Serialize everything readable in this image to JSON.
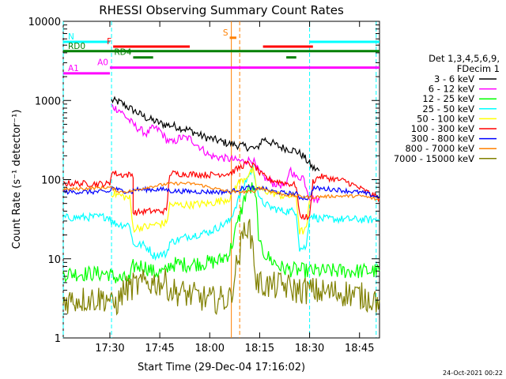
{
  "chart_data": {
    "type": "line",
    "title": "RHESSI Observing Summary Count Rates",
    "xlabel": "Start Time (29-Dec-04 17:16:02)",
    "ylabel": "Count Rate (s⁻¹ detector⁻¹)",
    "timestamp": "24-Oct-2021 00:22",
    "x_unit": "minutes after 17:16:02",
    "xlim": [
      0,
      95
    ],
    "ylim": [
      1,
      10000
    ],
    "yscale": "log",
    "x_ticks": [
      {
        "label": "17:30",
        "t": 14
      },
      {
        "label": "17:45",
        "t": 29
      },
      {
        "label": "18:00",
        "t": 44
      },
      {
        "label": "18:15",
        "t": 59
      },
      {
        "label": "18:30",
        "t": 74
      },
      {
        "label": "18:45",
        "t": 89
      }
    ],
    "y_ticks": [
      {
        "label": "1",
        "v": 1
      },
      {
        "label": "10",
        "v": 10
      },
      {
        "label": "100",
        "v": 100
      },
      {
        "label": "1000",
        "v": 1000
      },
      {
        "label": "10000",
        "v": 10000
      }
    ],
    "legend": {
      "header": [
        "Det 1,3,4,5,6,9,",
        "FDecim 1"
      ],
      "placement": "right"
    },
    "series": [
      {
        "name": "3 - 6 keV",
        "color": "#000000",
        "noise": 0.05,
        "points": [
          [
            14.5,
            1000
          ],
          [
            17,
            950
          ],
          [
            20,
            800
          ],
          [
            25,
            600
          ],
          [
            30,
            500
          ],
          [
            33,
            480
          ],
          [
            38,
            420
          ],
          [
            42,
            350
          ],
          [
            49,
            290
          ],
          [
            57,
            250
          ],
          [
            58,
            240
          ],
          [
            60,
            330
          ],
          [
            65,
            260
          ],
          [
            70,
            230
          ],
          [
            72,
            200
          ],
          [
            75,
            140
          ],
          [
            77,
            130
          ]
        ]
      },
      {
        "name": "6 - 12 keV",
        "color": "#ff00ff",
        "noise": 0.05,
        "points": [
          [
            14.5,
            850
          ],
          [
            17,
            750
          ],
          [
            20,
            550
          ],
          [
            22,
            460
          ],
          [
            25,
            380
          ],
          [
            27,
            450
          ],
          [
            29,
            420
          ],
          [
            31,
            320
          ],
          [
            33,
            290
          ],
          [
            35,
            340
          ],
          [
            38,
            330
          ],
          [
            41,
            260
          ],
          [
            44,
            200
          ],
          [
            49,
            185
          ],
          [
            54,
            170
          ],
          [
            57,
            180
          ],
          [
            58,
            140
          ],
          [
            60,
            110
          ],
          [
            63,
            90
          ],
          [
            66,
            85
          ],
          [
            67,
            80
          ],
          [
            68,
            140
          ],
          [
            70,
            105
          ],
          [
            72,
            110
          ],
          [
            74,
            60
          ],
          [
            77,
            55
          ]
        ]
      },
      {
        "name": "12 - 25 keV",
        "color": "#00ff00",
        "noise": 0.1,
        "points": [
          [
            0,
            6.5
          ],
          [
            14,
            6.5
          ],
          [
            14.5,
            6
          ],
          [
            17,
            5.6
          ],
          [
            20,
            5.4
          ],
          [
            21,
            8
          ],
          [
            24,
            8.2
          ],
          [
            26,
            7.3
          ],
          [
            27,
            6.8
          ],
          [
            31,
            6.8
          ],
          [
            32,
            8.5
          ],
          [
            37,
            8.5
          ],
          [
            44,
            9
          ],
          [
            47,
            9.5
          ],
          [
            50,
            12
          ],
          [
            55,
            70
          ],
          [
            57,
            80
          ],
          [
            58,
            50
          ],
          [
            59,
            14
          ],
          [
            62,
            10
          ],
          [
            66,
            7.5
          ],
          [
            73,
            7
          ],
          [
            74,
            7
          ],
          [
            77,
            7
          ],
          [
            95,
            7
          ]
        ]
      },
      {
        "name": "25 - 50 keV",
        "color": "#00ffff",
        "noise": 0.05,
        "points": [
          [
            0,
            33
          ],
          [
            14,
            34
          ],
          [
            14.5,
            29
          ],
          [
            17,
            27
          ],
          [
            20,
            27
          ],
          [
            21,
            15
          ],
          [
            24,
            15
          ],
          [
            26,
            13
          ],
          [
            27,
            11
          ],
          [
            31,
            11.5
          ],
          [
            32,
            16
          ],
          [
            37,
            19
          ],
          [
            44,
            22
          ],
          [
            50,
            30
          ],
          [
            55,
            100
          ],
          [
            57,
            140
          ],
          [
            58,
            90
          ],
          [
            59,
            55
          ],
          [
            62,
            45
          ],
          [
            66,
            40
          ],
          [
            70,
            40
          ],
          [
            71,
            13.5
          ],
          [
            73,
            14
          ],
          [
            74,
            36
          ],
          [
            77,
            32
          ],
          [
            95,
            31
          ]
        ]
      },
      {
        "name": "50 - 100 keV",
        "color": "#ffff00",
        "noise": 0.05,
        "points": [
          [
            14.5,
            68
          ],
          [
            20,
            58
          ],
          [
            21,
            24
          ],
          [
            23,
            25
          ],
          [
            26,
            25.5
          ],
          [
            27,
            27
          ],
          [
            31,
            28
          ],
          [
            32,
            48
          ],
          [
            37,
            48
          ],
          [
            44,
            50
          ],
          [
            50,
            58
          ],
          [
            52,
            85
          ],
          [
            55,
            110
          ],
          [
            57,
            130
          ],
          [
            58,
            80
          ],
          [
            59,
            75
          ],
          [
            62,
            70
          ],
          [
            66,
            62
          ],
          [
            70,
            62
          ],
          [
            71,
            22
          ],
          [
            73,
            23
          ],
          [
            74,
            55
          ]
        ]
      },
      {
        "name": "100 - 300 keV",
        "color": "#ff0000",
        "noise": 0.04,
        "points": [
          [
            0,
            90
          ],
          [
            14,
            88
          ],
          [
            14.5,
            125
          ],
          [
            17,
            115
          ],
          [
            21,
            115
          ],
          [
            21,
            38
          ],
          [
            25,
            40
          ],
          [
            31,
            40
          ],
          [
            32,
            120
          ],
          [
            37,
            118
          ],
          [
            44,
            115
          ],
          [
            50,
            120
          ],
          [
            55,
            160
          ],
          [
            57,
            150
          ],
          [
            58,
            140
          ],
          [
            59,
            120
          ],
          [
            62,
            100
          ],
          [
            66,
            92
          ],
          [
            70,
            85
          ],
          [
            71,
            35
          ],
          [
            74,
            33
          ],
          [
            75,
            95
          ],
          [
            77,
            110
          ],
          [
            85,
            95
          ],
          [
            95,
            58
          ]
        ]
      },
      {
        "name": "300 - 800 keV",
        "color": "#0000ff",
        "noise": 0.03,
        "points": [
          [
            0,
            70
          ],
          [
            14,
            70
          ],
          [
            14.5,
            80
          ],
          [
            17,
            73
          ],
          [
            21,
            70
          ],
          [
            21,
            75
          ],
          [
            25,
            75
          ],
          [
            31,
            75
          ],
          [
            32,
            72
          ],
          [
            44,
            70
          ],
          [
            50,
            70
          ],
          [
            55,
            80
          ],
          [
            57,
            78
          ],
          [
            58,
            72
          ],
          [
            59,
            80
          ],
          [
            62,
            72
          ],
          [
            66,
            68
          ],
          [
            70,
            66
          ],
          [
            71,
            60
          ],
          [
            74,
            58
          ],
          [
            75,
            78
          ],
          [
            82,
            75
          ],
          [
            90,
            68
          ],
          [
            95,
            60
          ]
        ]
      },
      {
        "name": "800 - 7000 keV",
        "color": "#ff8000",
        "noise": 0.02,
        "points": [
          [
            0,
            75
          ],
          [
            14,
            80
          ],
          [
            17,
            70
          ],
          [
            21,
            72
          ],
          [
            25,
            80
          ],
          [
            31,
            88
          ],
          [
            36,
            90
          ],
          [
            40,
            88
          ],
          [
            44,
            80
          ],
          [
            50,
            70
          ],
          [
            57,
            70
          ],
          [
            59,
            80
          ],
          [
            62,
            72
          ],
          [
            66,
            65
          ],
          [
            70,
            62
          ],
          [
            74,
            60
          ],
          [
            82,
            62
          ],
          [
            90,
            62
          ],
          [
            95,
            55
          ]
        ]
      },
      {
        "name": "7000 - 15000 keV",
        "color": "#808000",
        "noise": 0.18,
        "points": [
          [
            0,
            3
          ],
          [
            14,
            3.2
          ],
          [
            14.5,
            2.5
          ],
          [
            17,
            3
          ],
          [
            18,
            4
          ],
          [
            21,
            4.5
          ],
          [
            25,
            5
          ],
          [
            31,
            5
          ],
          [
            32,
            4
          ],
          [
            38,
            3.5
          ],
          [
            44,
            3
          ],
          [
            50,
            3.1
          ],
          [
            55,
            30
          ],
          [
            57,
            15
          ],
          [
            58,
            5
          ],
          [
            62,
            4.5
          ],
          [
            66,
            4.6
          ],
          [
            70,
            4
          ],
          [
            74,
            4
          ],
          [
            77,
            3.8
          ],
          [
            85,
            3.7
          ],
          [
            95,
            3
          ]
        ]
      },
      {
        "name": "",
        "color": "#000000",
        "noise": 0,
        "points": []
      }
    ],
    "flags": [
      {
        "label": "N",
        "color": "#00ffff",
        "value": 5500,
        "segments": [
          [
            0,
            14
          ],
          [
            74,
            95
          ]
        ]
      },
      {
        "label": "S",
        "color": "#ff8000",
        "value": 6200,
        "segments": [
          [
            50,
            52
          ]
        ]
      },
      {
        "label": "F",
        "color": "#ff0000",
        "value": 4800,
        "segments": [
          [
            15,
            38
          ],
          [
            60,
            75
          ]
        ]
      },
      {
        "label": "RD0",
        "color": "#008000",
        "value": 4200,
        "segments": [
          [
            0,
            95
          ]
        ]
      },
      {
        "label": "RD4",
        "color": "#008000",
        "value": 3500,
        "segments": [
          [
            21,
            27
          ],
          [
            67,
            70
          ]
        ]
      },
      {
        "label": "A0",
        "color": "#ff00ff",
        "value": 2600,
        "segments": [
          [
            14,
            95
          ]
        ]
      },
      {
        "label": "A1",
        "color": "#ff00ff",
        "value": 2200,
        "segments": [
          [
            0,
            14
          ]
        ]
      }
    ],
    "vlines": [
      {
        "t": 14.5,
        "color": "#00ffff",
        "style": "dashed"
      },
      {
        "t": 74,
        "color": "#00ffff",
        "style": "dashed"
      },
      {
        "t": 94,
        "color": "#00ffff",
        "style": "dashed"
      },
      {
        "t": 0,
        "color": "#00ffff",
        "style": "dashed"
      },
      {
        "t": 50.5,
        "color": "#ff8000",
        "style": "solid"
      },
      {
        "t": 53,
        "color": "#ff8000",
        "style": "dashed"
      }
    ]
  }
}
